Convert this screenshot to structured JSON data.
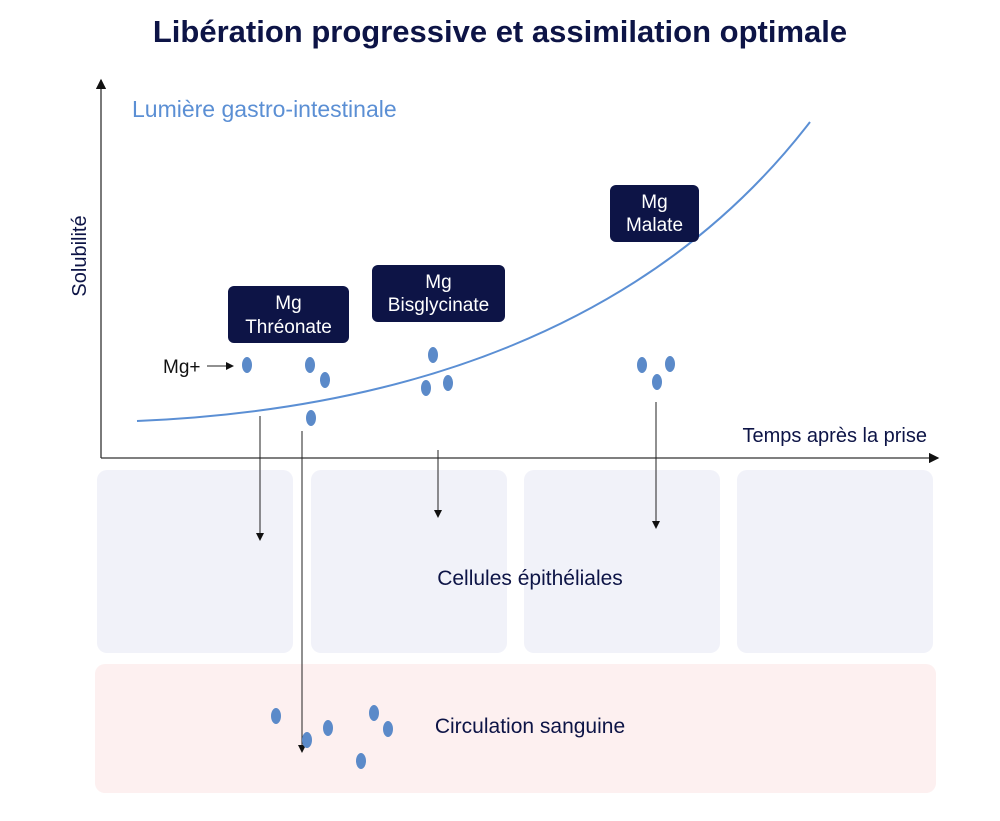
{
  "title": "Libération progressive et assimilation optimale",
  "lumen_label": "Lumière gastro-intestinale",
  "y_axis_label": "Solubilité",
  "x_axis_label": "Temps après la prise",
  "ion_label": "Mg+",
  "forms": [
    {
      "line1": "Mg",
      "line2": "Thréonate"
    },
    {
      "line1": "Mg",
      "line2": "Bisglycinate"
    },
    {
      "line1": "Mg",
      "line2": "Malate"
    }
  ],
  "zones": {
    "epithelial": "Cellules épithéliales",
    "blood": "Circulation sanguine"
  },
  "colors": {
    "title": "#0d1446",
    "curve": "#5b8fd4",
    "dots": "#5b8ac9",
    "label_box": "#0d1446",
    "epithelial_fill": "#f1f2f9",
    "blood_fill": "#fdf0f0"
  }
}
